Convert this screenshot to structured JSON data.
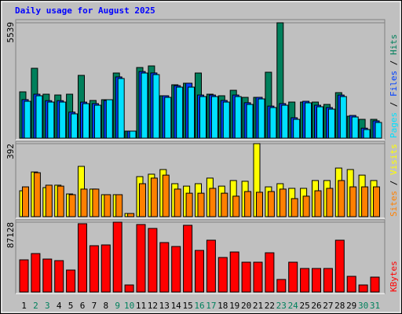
{
  "chart_data": [
    {
      "type": "bar",
      "title": "Daily usage for August 2025",
      "ylim": [
        0,
        5539
      ],
      "yticks": [
        5539
      ],
      "legend_separator": "/",
      "series": [
        {
          "name": "Hits",
          "color": "#00805c",
          "values": [
            2223,
            3354,
            2110,
            2072,
            2110,
            3014,
            1809,
            1846,
            3127,
            339,
            3391,
            3467,
            2035,
            2562,
            2637,
            3127,
            2110,
            2035,
            2298,
            1959,
            1959,
            3165,
            5539,
            1733,
            1733,
            1733,
            1620,
            2185,
            1055,
            904,
            904
          ]
        },
        {
          "name": "Files",
          "color": "#0040ff",
          "values": [
            1850,
            2110,
            1800,
            1800,
            1250,
            1730,
            1660,
            1809,
            2940,
            339,
            3200,
            3130,
            2035,
            2520,
            2637,
            2070,
            2070,
            1810,
            2070,
            1700,
            1960,
            1540,
            1660,
            980,
            1770,
            1580,
            1470,
            2070,
            1090,
            480,
            830
          ]
        },
        {
          "name": "Pages",
          "color": "#00e0ff",
          "values": [
            1771,
            2035,
            1733,
            1733,
            1168,
            1658,
            1582,
            1846,
            2864,
            339,
            3127,
            3052,
            1959,
            2449,
            2449,
            1997,
            1997,
            1733,
            1997,
            1620,
            1884,
            1470,
            1582,
            904,
            1696,
            1507,
            1394,
            1997,
            1017,
            414,
            754
          ]
        }
      ]
    },
    {
      "type": "bar",
      "ylim": [
        0,
        392
      ],
      "yticks": [
        392
      ],
      "legend_separator": "/",
      "series": [
        {
          "name": "Visits",
          "color": "#ffff00",
          "values": [
            139,
            240,
            156,
            169,
            122,
            270,
            148,
            118,
            118,
            17,
            215,
            228,
            253,
            177,
            164,
            177,
            207,
            164,
            194,
            190,
            392,
            160,
            177,
            152,
            152,
            194,
            194,
            261,
            253,
            223,
            194
          ]
        },
        {
          "name": "Sites",
          "color": "#ff8000",
          "values": [
            160,
            236,
            169,
            164,
            118,
            148,
            148,
            118,
            118,
            17,
            177,
            207,
            223,
            148,
            126,
            126,
            152,
            126,
            110,
            135,
            131,
            135,
            148,
            97,
            110,
            139,
            152,
            194,
            160,
            160,
            160
          ]
        }
      ]
    },
    {
      "type": "bar",
      "ylim": [
        0,
        87128
      ],
      "yticks": [
        87128
      ],
      "series": [
        {
          "name": "KBytes",
          "color": "#ff0000",
          "values": [
            40139,
            47972,
            41118,
            39160,
            27413,
            85174,
            57762,
            58741,
            87128,
            8811,
            84195,
            79300,
            61678,
            56783,
            83216,
            51888,
            64615,
            43076,
            49929,
            37202,
            37202,
            48950,
            15664,
            37202,
            29370,
            29370,
            29370,
            64615,
            19580,
            8811,
            18601
          ]
        }
      ],
      "categories": [
        "1",
        "2",
        "3",
        "4",
        "5",
        "6",
        "7",
        "8",
        "9",
        "10",
        "11",
        "12",
        "13",
        "14",
        "15",
        "16",
        "17",
        "18",
        "19",
        "20",
        "21",
        "22",
        "23",
        "24",
        "25",
        "26",
        "27",
        "28",
        "29",
        "30",
        "31"
      ],
      "category_colors": [
        "#000000",
        "#00805c",
        "#00805c",
        "#000000",
        "#000000",
        "#000000",
        "#000000",
        "#000000",
        "#00805c",
        "#00805c",
        "#000000",
        "#000000",
        "#000000",
        "#000000",
        "#000000",
        "#00805c",
        "#00805c",
        "#000000",
        "#000000",
        "#000000",
        "#000000",
        "#000000",
        "#00805c",
        "#00805c",
        "#000000",
        "#000000",
        "#000000",
        "#000000",
        "#000000",
        "#00805c",
        "#00805c"
      ]
    }
  ]
}
